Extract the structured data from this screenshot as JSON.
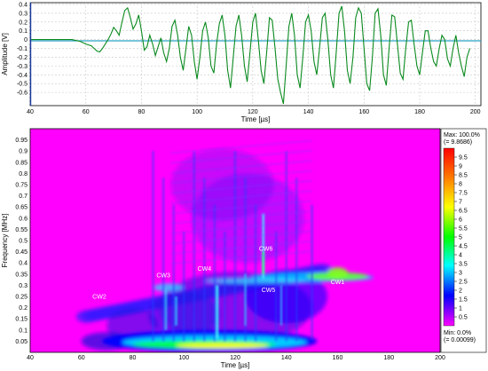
{
  "chart_data": [
    {
      "type": "line",
      "xlabel": "Time [µs]",
      "ylabel": "Amplitude [V]",
      "xlim": [
        40,
        202
      ],
      "ylim": [
        -0.75,
        0.42
      ],
      "xticks": [
        "40",
        "60",
        "80",
        "100",
        "120",
        "140",
        "160",
        "180",
        "200"
      ],
      "yticks": [
        "0.4",
        "0.3",
        "0.2",
        "0.1",
        "0",
        "-0.1",
        "-0.2",
        "-0.3",
        "-0.4",
        "-0.5",
        "-0.6"
      ],
      "grid": true,
      "series": [
        {
          "color": "#0a8a1e",
          "x": [
            40,
            55,
            58,
            60,
            62,
            63,
            64,
            65,
            66,
            67,
            68,
            69,
            70,
            71,
            72,
            73,
            74,
            75,
            76,
            77,
            78,
            79,
            80,
            81,
            82,
            83,
            84,
            85,
            86,
            87,
            88,
            89,
            90,
            91,
            92,
            93,
            94,
            95,
            96,
            97,
            98,
            99,
            100,
            101,
            102,
            103,
            104,
            105,
            106,
            107,
            108,
            109,
            110,
            111,
            112,
            113,
            114,
            115,
            116,
            117,
            118,
            119,
            120,
            121,
            122,
            123,
            124,
            125,
            126,
            127,
            128,
            129,
            130,
            131,
            132,
            133,
            134,
            135,
            136,
            137,
            138,
            139,
            140,
            141,
            142,
            143,
            144,
            145,
            146,
            147,
            148,
            149,
            150,
            151,
            152,
            153,
            154,
            155,
            156,
            157,
            158,
            159,
            160,
            161,
            162,
            163,
            164,
            165,
            166,
            167,
            168,
            169,
            170,
            171,
            172,
            173,
            174,
            175,
            176,
            177,
            178,
            179,
            180,
            181,
            182,
            183,
            184,
            185,
            186,
            187,
            188,
            189,
            190,
            191,
            192,
            193,
            194,
            195,
            196,
            197,
            198
          ],
          "y": [
            0,
            0,
            -0.02,
            -0.05,
            -0.07,
            -0.1,
            -0.13,
            -0.14,
            -0.1,
            -0.05,
            0.0,
            0.06,
            0.14,
            0.1,
            0.05,
            0.2,
            0.33,
            0.36,
            0.25,
            0.12,
            0.18,
            0.28,
            0.1,
            -0.12,
            -0.08,
            0.05,
            -0.05,
            -0.18,
            -0.08,
            0.02,
            -0.15,
            -0.25,
            -0.1,
            0.15,
            0.22,
            0.05,
            -0.2,
            -0.35,
            -0.1,
            0.15,
            0.05,
            -0.25,
            -0.45,
            -0.2,
            0.1,
            0.2,
            0.02,
            -0.3,
            -0.38,
            -0.05,
            0.18,
            0.28,
            0.05,
            -0.35,
            -0.55,
            -0.2,
            0.15,
            0.28,
            0.05,
            -0.3,
            -0.48,
            -0.15,
            0.2,
            0.3,
            0.0,
            -0.35,
            -0.5,
            -0.15,
            0.25,
            0.22,
            -0.1,
            -0.45,
            -0.6,
            -0.73,
            -0.3,
            0.15,
            0.3,
            0.05,
            -0.4,
            -0.55,
            -0.2,
            0.2,
            0.28,
            0.1,
            -0.25,
            -0.4,
            -0.1,
            0.25,
            0.3,
            0.0,
            -0.4,
            -0.55,
            -0.15,
            0.3,
            0.38,
            0.1,
            -0.35,
            -0.5,
            -0.2,
            0.25,
            0.36,
            0.3,
            -0.1,
            -0.5,
            -0.58,
            -0.2,
            0.3,
            0.35,
            0.05,
            -0.4,
            -0.52,
            -0.1,
            0.28,
            0.26,
            -0.05,
            -0.38,
            -0.45,
            -0.1,
            0.2,
            0.22,
            -0.05,
            -0.3,
            -0.4,
            -0.15,
            0.1,
            0.1,
            -0.1,
            -0.25,
            -0.3,
            -0.1,
            0.05,
            0.0,
            -0.22,
            -0.3,
            -0.1,
            0.05,
            -0.15,
            -0.3,
            -0.42,
            -0.2,
            -0.1
          ]
        }
      ]
    },
    {
      "type": "heatmap",
      "xlabel": "Time [µs]",
      "ylabel": "Frequency [MHz]",
      "xlim": [
        40,
        200
      ],
      "ylim": [
        0,
        1.0
      ],
      "xticks": [
        "40",
        "60",
        "80",
        "100",
        "120",
        "140",
        "160",
        "180",
        "200"
      ],
      "yticks": [
        "0.95",
        "0.9",
        "0.85",
        "0.8",
        "0.75",
        "0.7",
        "0.65",
        "0.6",
        "0.55",
        "0.5",
        "0.45",
        "0.4",
        "0.35",
        "0.3",
        "0.25",
        "0.2",
        "0.15",
        "0.1",
        "0.05"
      ],
      "annotations": [
        {
          "label": "CW2",
          "t": 67,
          "f": 0.24
        },
        {
          "label": "CW3",
          "t": 92,
          "f": 0.335
        },
        {
          "label": "CW4",
          "t": 108,
          "f": 0.365
        },
        {
          "label": "CW6",
          "t": 132,
          "f": 0.455
        },
        {
          "label": "CW5",
          "t": 133,
          "f": 0.27
        },
        {
          "label": "CW1",
          "t": 160,
          "f": 0.305
        }
      ],
      "colorbar": {
        "max_label": "Max: 100.0%",
        "max_value": "(= 9.8686)",
        "min_label": "Min: 0.0%",
        "min_value": "(= 0.00099)",
        "ticks": [
          "9.5",
          "9",
          "8.5",
          "8",
          "7.5",
          "7",
          "6.5",
          "6",
          "5.5",
          "5",
          "4.5",
          "4",
          "3.5",
          "3",
          "2.5",
          "2",
          "1.5",
          "1",
          "0.5"
        ],
        "colors": [
          "#ff00ff",
          "#0000ff",
          "#00ffff",
          "#00ff00",
          "#ffff00",
          "#ff8000",
          "#ff0000"
        ]
      },
      "background_color": "#ff00ff"
    }
  ]
}
